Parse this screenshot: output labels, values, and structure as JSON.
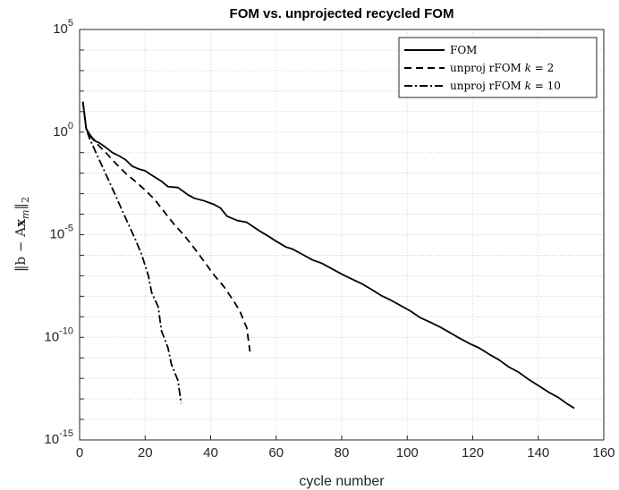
{
  "chart_data": {
    "type": "line",
    "title": "FOM vs. unprojected recycled FOM",
    "xlabel": "cycle number",
    "ylabel": "||b − Ax_m||₂",
    "ylabel_parts": {
      "open": "‖b − A",
      "x": "x",
      "m": "m",
      "close": "‖",
      "sub": "2"
    },
    "xlim": [
      0,
      160
    ],
    "ylim": [
      1e-15,
      100000.0
    ],
    "yscale": "log",
    "xticks": [
      "0",
      "20",
      "40",
      "60",
      "80",
      "100",
      "120",
      "140",
      "160"
    ],
    "yticks": [
      {
        "base": "10",
        "exp": "-15"
      },
      {
        "base": "10",
        "exp": "-10"
      },
      {
        "base": "10",
        "exp": "-5"
      },
      {
        "base": "10",
        "exp": "0"
      },
      {
        "base": "10",
        "exp": "5"
      }
    ],
    "grid": true,
    "legend_position": "top-right",
    "series": [
      {
        "name": "FOM",
        "legend_label": "FOM",
        "dash": "solid",
        "x": [
          1,
          2,
          3,
          4,
          5,
          6,
          8,
          10,
          12,
          14,
          16,
          18,
          20,
          22,
          25,
          27,
          30,
          33,
          35,
          38,
          41,
          43,
          45,
          48,
          51,
          55,
          57,
          60,
          63,
          65,
          68,
          71,
          74,
          77,
          80,
          83,
          86,
          89,
          92,
          95,
          98,
          101,
          104,
          107,
          110,
          113,
          116,
          119,
          122,
          125,
          128,
          131,
          134,
          137,
          140,
          143,
          146,
          149,
          151
        ],
        "y": [
          30,
          1.5,
          0.8,
          0.5,
          0.35,
          0.3,
          0.18,
          0.1,
          0.07,
          0.045,
          0.022,
          0.016,
          0.013,
          0.008,
          0.004,
          0.0022,
          0.002,
          0.0009,
          0.0006,
          0.00045,
          0.0003,
          0.0002,
          8e-05,
          5e-05,
          4e-05,
          1.5e-05,
          9.7e-06,
          4.8e-06,
          2.5e-06,
          2e-06,
          1.1e-06,
          6e-07,
          4e-07,
          2.2e-07,
          1.2e-07,
          7e-08,
          4.2e-08,
          2.2e-08,
          1.1e-08,
          6.5e-09,
          3.5e-09,
          1.9e-09,
          9e-10,
          5.5e-10,
          3.2e-10,
          1.7e-10,
          9e-11,
          5e-11,
          3e-11,
          1.5e-11,
          8e-12,
          3.6e-12,
          2e-12,
          9e-13,
          4.5e-13,
          2.2e-13,
          1.2e-13,
          5.5e-14,
          3.5e-14
        ]
      },
      {
        "name": "unproj rFOM k = 2",
        "legend_label": "unproj rFOM ",
        "legend_k": "k",
        "legend_eq": " = 2",
        "dash": "dashed",
        "x": [
          1,
          2,
          3,
          5,
          8,
          11,
          14,
          17,
          20,
          23,
          26,
          29,
          32,
          35,
          38,
          41,
          44,
          47,
          49,
          50,
          51,
          52
        ],
        "y": [
          30,
          1.5,
          0.7,
          0.3,
          0.1,
          0.03,
          0.01,
          0.004,
          0.0015,
          0.0005,
          0.00012,
          3e-05,
          9e-06,
          2.2e-06,
          5e-07,
          1.1e-07,
          3e-08,
          6e-09,
          1.8e-09,
          7e-10,
          3e-10,
          2e-11
        ]
      },
      {
        "name": "unproj rFOM k = 10",
        "legend_label": "unproj rFOM ",
        "legend_k": "k",
        "legend_eq": " = 10",
        "dash": "dashdot",
        "x": [
          1,
          2,
          3,
          5,
          7,
          9,
          11,
          13,
          15,
          17,
          19,
          21,
          22,
          23,
          24,
          25,
          26,
          27,
          28,
          29,
          30,
          31
        ],
        "y": [
          30,
          1.5,
          0.5,
          0.1,
          0.02,
          0.004,
          0.0008,
          0.00015,
          3e-05,
          6e-06,
          1e-06,
          1e-07,
          1.5e-08,
          7e-09,
          3e-09,
          2e-10,
          8e-11,
          3e-11,
          5e-12,
          2e-12,
          8e-13,
          6e-14
        ]
      }
    ]
  }
}
